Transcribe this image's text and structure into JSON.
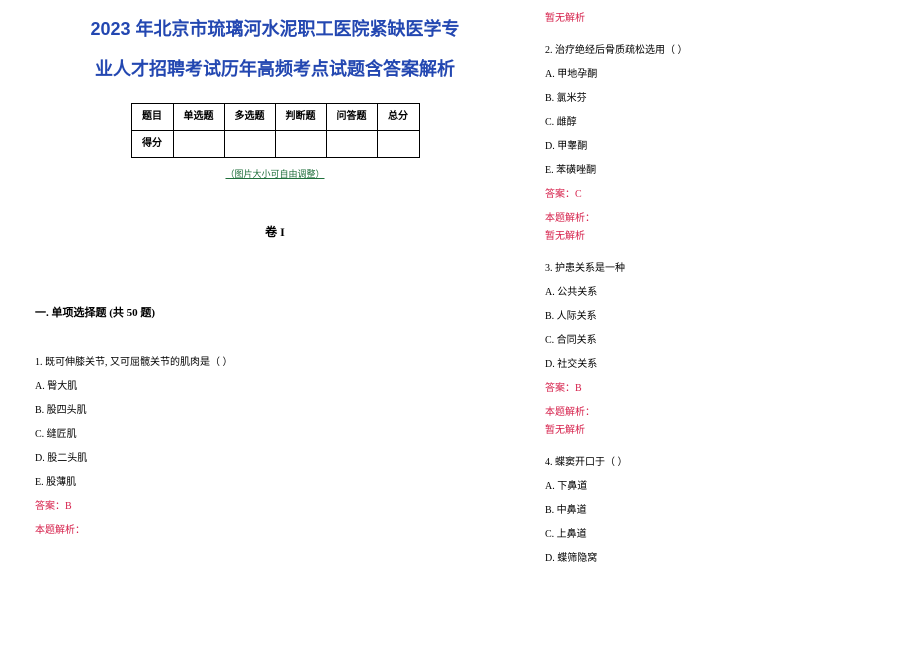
{
  "title_l1": "2023 年北京市琉璃河水泥职工医院紧缺医学专",
  "title_l2": "业人才招聘考试历年高频考点试题含答案解析",
  "score_table": {
    "headers": [
      "题目",
      "单选题",
      "多选题",
      "判断题",
      "问答题",
      "总分"
    ],
    "row_label": "得分"
  },
  "note": "（图片大小可自由调整）",
  "volume": "卷 I",
  "section1": "一. 单项选择题 (共 50 题)",
  "q1": {
    "stem": "1. 既可伸膝关节, 又可屈髋关节的肌肉是（ ）",
    "opts": [
      "A. 臀大肌",
      "B. 股四头肌",
      "C. 缝匠肌",
      "D. 股二头肌",
      "E. 股薄肌"
    ],
    "ans": "答案：B",
    "explain_label": "本题解析：",
    "explain_text": "暂无解析"
  },
  "q2": {
    "stem": "2. 治疗绝经后骨质疏松选用（   ）",
    "opts": [
      "A. 甲地孕酮",
      "B. 氯米芬",
      "C. 雌醇",
      "D. 甲睾酮",
      "E. 苯磺唑酮"
    ],
    "ans": "答案：C",
    "explain_label": "本题解析：",
    "explain_text": "暂无解析"
  },
  "q3": {
    "stem": "3. 护患关系是一种",
    "opts": [
      "A. 公共关系",
      "B. 人际关系",
      "C. 合同关系",
      "D. 社交关系"
    ],
    "ans": "答案：B",
    "explain_label": "本题解析：",
    "explain_text": "暂无解析"
  },
  "q4": {
    "stem": "4. 蝶窦开口于（ ）",
    "opts": [
      "A. 下鼻道",
      "B. 中鼻道",
      "C. 上鼻道",
      "D. 蝶筛隐窝"
    ]
  }
}
